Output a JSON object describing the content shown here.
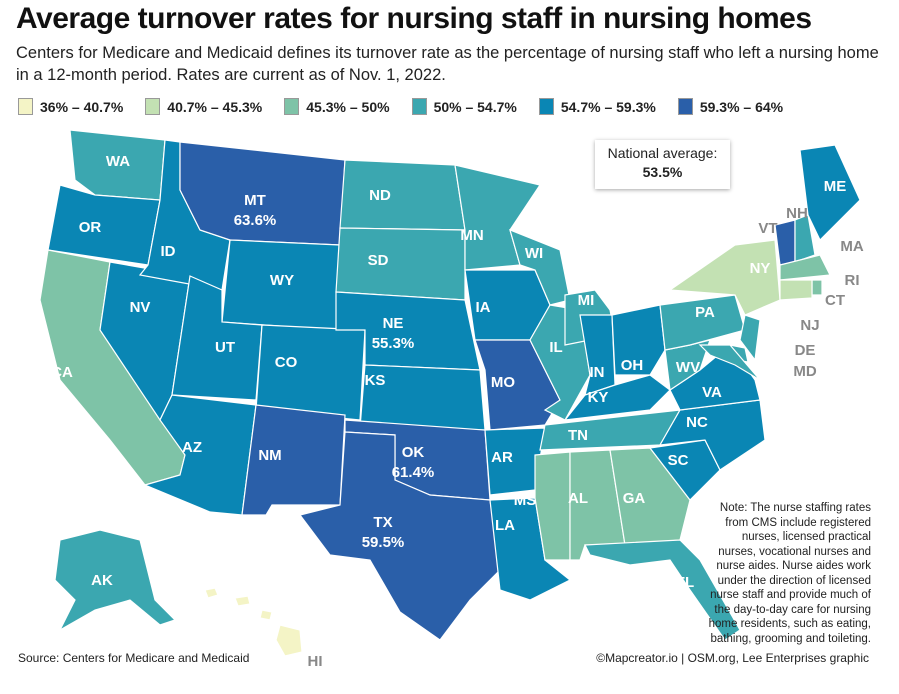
{
  "title": "Average turnover rates for nursing staff in nursing homes",
  "subtitle": "Centers for Medicare and Medicaid defines its turnover rate as the percentage of nursing staff who left a nursing home in a 12-month period. Rates are current as of Nov. 1, 2022.",
  "legend": [
    {
      "label": "36% – 40.7%",
      "color": "#f4f4c6"
    },
    {
      "label": "40.7% – 45.3%",
      "color": "#c3e1b3"
    },
    {
      "label": "45.3% – 50%",
      "color": "#7ec3a7"
    },
    {
      "label": "50% – 54.7%",
      "color": "#3ba7b0"
    },
    {
      "label": "54.7% – 59.3%",
      "color": "#0a86b4"
    },
    {
      "label": "59.3% – 64%",
      "color": "#2a5fa9"
    }
  ],
  "national": {
    "label": "National average:",
    "value": "53.5%"
  },
  "states": [
    {
      "abbr": "WA",
      "bin": 3
    },
    {
      "abbr": "OR",
      "bin": 4
    },
    {
      "abbr": "CA",
      "bin": 2
    },
    {
      "abbr": "NV",
      "bin": 4
    },
    {
      "abbr": "ID",
      "bin": 4
    },
    {
      "abbr": "MT",
      "bin": 5,
      "value": "63.6%"
    },
    {
      "abbr": "WY",
      "bin": 4
    },
    {
      "abbr": "UT",
      "bin": 4
    },
    {
      "abbr": "CO",
      "bin": 4
    },
    {
      "abbr": "AZ",
      "bin": 4
    },
    {
      "abbr": "NM",
      "bin": 5
    },
    {
      "abbr": "ND",
      "bin": 3
    },
    {
      "abbr": "SD",
      "bin": 3
    },
    {
      "abbr": "NE",
      "bin": 4,
      "value": "55.3%"
    },
    {
      "abbr": "KS",
      "bin": 4
    },
    {
      "abbr": "OK",
      "bin": 5,
      "value": "61.4%"
    },
    {
      "abbr": "TX",
      "bin": 5,
      "value": "59.5%"
    },
    {
      "abbr": "MN",
      "bin": 3
    },
    {
      "abbr": "IA",
      "bin": 4
    },
    {
      "abbr": "MO",
      "bin": 5
    },
    {
      "abbr": "AR",
      "bin": 4
    },
    {
      "abbr": "LA",
      "bin": 4
    },
    {
      "abbr": "WI",
      "bin": 3
    },
    {
      "abbr": "IL",
      "bin": 3
    },
    {
      "abbr": "MI",
      "bin": 3
    },
    {
      "abbr": "IN",
      "bin": 4
    },
    {
      "abbr": "OH",
      "bin": 4
    },
    {
      "abbr": "KY",
      "bin": 4
    },
    {
      "abbr": "TN",
      "bin": 3
    },
    {
      "abbr": "MS",
      "bin": 2
    },
    {
      "abbr": "AL",
      "bin": 2
    },
    {
      "abbr": "GA",
      "bin": 2
    },
    {
      "abbr": "FL",
      "bin": 3
    },
    {
      "abbr": "SC",
      "bin": 4
    },
    {
      "abbr": "NC",
      "bin": 4
    },
    {
      "abbr": "VA",
      "bin": 4
    },
    {
      "abbr": "WV",
      "bin": 3
    },
    {
      "abbr": "PA",
      "bin": 3
    },
    {
      "abbr": "NY",
      "bin": 1
    },
    {
      "abbr": "NJ",
      "bin": 3
    },
    {
      "abbr": "DE",
      "bin": 3
    },
    {
      "abbr": "MD",
      "bin": 3
    },
    {
      "abbr": "VT",
      "bin": 5
    },
    {
      "abbr": "NH",
      "bin": 3
    },
    {
      "abbr": "ME",
      "bin": 4
    },
    {
      "abbr": "MA",
      "bin": 2
    },
    {
      "abbr": "RI",
      "bin": 2
    },
    {
      "abbr": "CT",
      "bin": 1
    },
    {
      "abbr": "AK",
      "bin": 3
    },
    {
      "abbr": "HI",
      "bin": 0
    }
  ],
  "note": "Note: The nurse staffing rates from CMS include registered nurses, licensed practical nurses, vocational nurses and nurse aides. Nurse aides work under the direction of licensed nurse staff and provide much of the day-to-day care for nursing home residents, such as eating, bathing, grooming and toileting.",
  "source": "Source: Centers for Medicare and Medicaid",
  "credit": "©Mapcreator.io | OSM.org, Lee Enterprises graphic"
}
